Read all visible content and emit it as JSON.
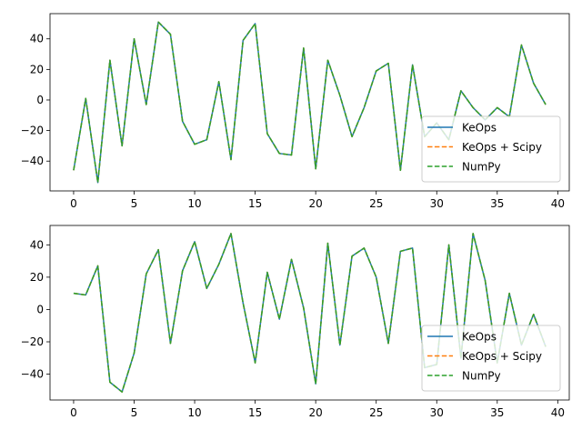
{
  "colors": {
    "keops": "#1f77b4",
    "keops_scipy": "#ff7f0e",
    "numpy": "#2ca02c",
    "axes": "#000000",
    "legend_border": "#cccccc"
  },
  "chart_data": [
    {
      "type": "line",
      "title": "",
      "xlabel": "",
      "ylabel": "",
      "xlim": [
        -1.95,
        40.95
      ],
      "ylim": [
        -59.5,
        56.5
      ],
      "xticks": [
        0,
        5,
        10,
        15,
        20,
        25,
        30,
        35,
        40
      ],
      "yticks": [
        -40,
        -20,
        0,
        20,
        40
      ],
      "grid": false,
      "legend": "lower-right",
      "x": [
        0,
        1,
        2,
        3,
        4,
        5,
        6,
        7,
        8,
        9,
        10,
        11,
        12,
        13,
        14,
        15,
        16,
        17,
        18,
        19,
        20,
        21,
        22,
        23,
        24,
        25,
        26,
        27,
        28,
        29,
        30,
        31,
        32,
        33,
        34,
        35,
        36,
        37,
        38,
        39
      ],
      "series": [
        {
          "name": "KeOps",
          "style": "solid",
          "color": "#1f77b4",
          "values": [
            -46,
            1,
            -54,
            26,
            -30,
            40,
            -3,
            51,
            43,
            -14,
            -29,
            -26,
            12,
            -39,
            39,
            50,
            -22,
            -35,
            -36,
            34,
            -45,
            26,
            3,
            -24,
            -5,
            19,
            24,
            -46,
            23,
            -24,
            -15,
            -26,
            6,
            -5,
            -13,
            -5,
            -11,
            36,
            11,
            -3
          ]
        },
        {
          "name": "KeOps + Scipy",
          "style": "dashed",
          "color": "#ff7f0e",
          "values": [
            -46,
            1,
            -54,
            26,
            -30,
            40,
            -3,
            51,
            43,
            -14,
            -29,
            -26,
            12,
            -39,
            39,
            50,
            -22,
            -35,
            -36,
            34,
            -45,
            26,
            3,
            -24,
            -5,
            19,
            24,
            -46,
            23,
            -24,
            -15,
            -26,
            6,
            -5,
            -13,
            -5,
            -11,
            36,
            11,
            -3
          ]
        },
        {
          "name": "NumPy",
          "style": "dashed",
          "color": "#2ca02c",
          "values": [
            -46,
            1,
            -54,
            26,
            -30,
            40,
            -3,
            51,
            43,
            -14,
            -29,
            -26,
            12,
            -39,
            39,
            50,
            -22,
            -35,
            -36,
            34,
            -45,
            26,
            3,
            -24,
            -5,
            19,
            24,
            -46,
            23,
            -24,
            -15,
            -26,
            6,
            -5,
            -13,
            -5,
            -11,
            36,
            11,
            -3
          ]
        }
      ]
    },
    {
      "type": "line",
      "title": "",
      "xlabel": "",
      "ylabel": "",
      "xlim": [
        -1.95,
        40.95
      ],
      "ylim": [
        -56,
        52
      ],
      "xticks": [
        0,
        5,
        10,
        15,
        20,
        25,
        30,
        35,
        40
      ],
      "yticks": [
        -40,
        -20,
        0,
        20,
        40
      ],
      "grid": false,
      "legend": "lower-right",
      "x": [
        0,
        1,
        2,
        3,
        4,
        5,
        6,
        7,
        8,
        9,
        10,
        11,
        12,
        13,
        14,
        15,
        16,
        17,
        18,
        19,
        20,
        21,
        22,
        23,
        24,
        25,
        26,
        27,
        28,
        29,
        30,
        31,
        32,
        33,
        34,
        35,
        36,
        37,
        38,
        39
      ],
      "series": [
        {
          "name": "KeOps",
          "style": "solid",
          "color": "#1f77b4",
          "values": [
            10,
            9,
            27,
            -45,
            -51,
            -27,
            22,
            37,
            -21,
            24,
            42,
            13,
            28,
            47,
            4,
            -33,
            23,
            -6,
            31,
            1,
            -46,
            41,
            -22,
            33,
            38,
            20,
            -21,
            36,
            38,
            -36,
            -34,
            40,
            -30,
            47,
            18,
            -33,
            10,
            -22,
            -3,
            -23
          ]
        },
        {
          "name": "KeOps + Scipy",
          "style": "dashed",
          "color": "#ff7f0e",
          "values": [
            10,
            9,
            27,
            -45,
            -51,
            -27,
            22,
            37,
            -21,
            24,
            42,
            13,
            28,
            47,
            4,
            -33,
            23,
            -6,
            31,
            1,
            -46,
            41,
            -22,
            33,
            38,
            20,
            -21,
            36,
            38,
            -36,
            -34,
            40,
            -30,
            47,
            18,
            -33,
            10,
            -22,
            -3,
            -23
          ]
        },
        {
          "name": "NumPy",
          "style": "dashed",
          "color": "#2ca02c",
          "values": [
            10,
            9,
            27,
            -45,
            -51,
            -27,
            22,
            37,
            -21,
            24,
            42,
            13,
            28,
            47,
            4,
            -33,
            23,
            -6,
            31,
            1,
            -46,
            41,
            -22,
            33,
            38,
            20,
            -21,
            36,
            38,
            -36,
            -34,
            40,
            -30,
            47,
            18,
            -33,
            10,
            -22,
            -3,
            -23
          ]
        }
      ]
    }
  ]
}
